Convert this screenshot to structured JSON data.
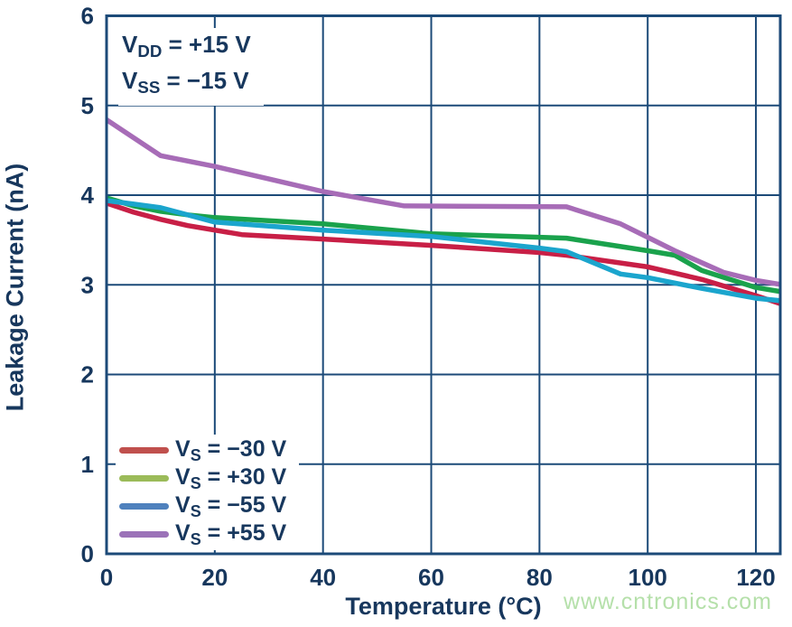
{
  "colors": {
    "text_navy": "#17375d",
    "grid": "#1c4a78",
    "frame": "#1c4a78",
    "watermark_green": "#b5e0aa"
  },
  "annotation": {
    "line1": {
      "base": "V",
      "sub": "DD",
      "rest": " = +15 V"
    },
    "line2": {
      "base": "V",
      "sub": "SS",
      "rest": " = −15 V"
    }
  },
  "legend": {
    "items": [
      {
        "base": "V",
        "sub": "S",
        "rest": " = −30 V",
        "color": "#c0504d"
      },
      {
        "base": "V",
        "sub": "S",
        "rest": " = +30 V",
        "color": "#9bbb59"
      },
      {
        "base": "V",
        "sub": "S",
        "rest": " = −55 V",
        "color": "#4f81bd"
      },
      {
        "base": "V",
        "sub": "S",
        "rest": " = +55 V",
        "color": "#9b72b8"
      }
    ]
  },
  "watermark": {
    "text": "www.cntronics.com"
  },
  "chart_data": {
    "type": "line",
    "title": "",
    "xlabel": "Temperature (°C)",
    "ylabel": "Leakage Current (nA)",
    "xlim": [
      0,
      124.5
    ],
    "ylim": [
      0,
      6
    ],
    "xticks": [
      0,
      20,
      40,
      60,
      80,
      100,
      120
    ],
    "yticks": [
      0,
      1,
      2,
      3,
      4,
      5,
      6
    ],
    "grid": true,
    "legend_position": "lower-left",
    "annotations": [
      "VDD = +15 V",
      "VSS = −15 V"
    ],
    "series": [
      {
        "name": "VS = −30 V",
        "color": "#c81f46",
        "points": [
          [
            0,
            3.91
          ],
          [
            5,
            3.81
          ],
          [
            10,
            3.73
          ],
          [
            15,
            3.66
          ],
          [
            25,
            3.56
          ],
          [
            40,
            3.51
          ],
          [
            60,
            3.44
          ],
          [
            80,
            3.36
          ],
          [
            85,
            3.33
          ],
          [
            100,
            3.2
          ],
          [
            105,
            3.13
          ],
          [
            110,
            3.06
          ],
          [
            120,
            2.88
          ],
          [
            125,
            2.78
          ]
        ]
      },
      {
        "name": "VS = +30 V",
        "color": "#1aa24c",
        "points": [
          [
            0,
            3.97
          ],
          [
            5,
            3.88
          ],
          [
            10,
            3.82
          ],
          [
            15,
            3.78
          ],
          [
            20,
            3.75
          ],
          [
            40,
            3.68
          ],
          [
            60,
            3.57
          ],
          [
            80,
            3.53
          ],
          [
            85,
            3.52
          ],
          [
            100,
            3.38
          ],
          [
            105,
            3.33
          ],
          [
            110,
            3.16
          ],
          [
            120,
            2.97
          ],
          [
            125,
            2.92
          ]
        ]
      },
      {
        "name": "VS = −55 V",
        "color": "#1ba5cd",
        "points": [
          [
            0,
            3.94
          ],
          [
            5,
            3.9
          ],
          [
            10,
            3.86
          ],
          [
            20,
            3.7
          ],
          [
            40,
            3.61
          ],
          [
            60,
            3.54
          ],
          [
            80,
            3.41
          ],
          [
            85,
            3.37
          ],
          [
            95,
            3.12
          ],
          [
            100,
            3.08
          ],
          [
            110,
            2.96
          ],
          [
            120,
            2.85
          ],
          [
            125,
            2.82
          ]
        ]
      },
      {
        "name": "VS = +55 V",
        "color": "#a76cb7",
        "points": [
          [
            0,
            4.84
          ],
          [
            10,
            4.44
          ],
          [
            20,
            4.32
          ],
          [
            30,
            4.18
          ],
          [
            40,
            4.04
          ],
          [
            55,
            3.88
          ],
          [
            85,
            3.87
          ],
          [
            95,
            3.68
          ],
          [
            100,
            3.53
          ],
          [
            105,
            3.38
          ],
          [
            114,
            3.14
          ],
          [
            120,
            3.05
          ],
          [
            125,
            3.0
          ]
        ]
      }
    ]
  }
}
